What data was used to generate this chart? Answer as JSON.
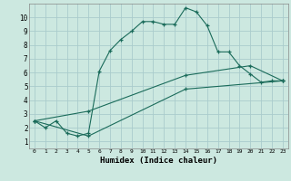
{
  "title": "",
  "xlabel": "Humidex (Indice chaleur)",
  "bg_color": "#cce8e0",
  "grid_color": "#aacccc",
  "line_color": "#1a6b5a",
  "xlim": [
    -0.5,
    23.5
  ],
  "ylim": [
    0.5,
    11.0
  ],
  "xticks": [
    0,
    1,
    2,
    3,
    4,
    5,
    6,
    7,
    8,
    9,
    10,
    11,
    12,
    13,
    14,
    15,
    16,
    17,
    18,
    19,
    20,
    21,
    22,
    23
  ],
  "yticks": [
    1,
    2,
    3,
    4,
    5,
    6,
    7,
    8,
    9,
    10
  ],
  "series1_x": [
    0,
    1,
    2,
    3,
    4,
    5,
    6,
    7,
    8,
    9,
    10,
    11,
    12,
    13,
    14,
    15,
    16,
    17,
    18,
    19,
    20,
    21,
    22,
    23
  ],
  "series1_y": [
    2.5,
    2.0,
    2.5,
    1.6,
    1.4,
    1.6,
    6.1,
    7.6,
    8.4,
    9.0,
    9.7,
    9.7,
    9.5,
    9.5,
    10.7,
    10.4,
    9.4,
    7.5,
    7.5,
    6.5,
    5.9,
    5.3,
    5.4,
    5.4
  ],
  "series2_x": [
    0,
    5,
    14,
    23
  ],
  "series2_y": [
    2.5,
    1.4,
    4.8,
    5.4
  ],
  "series3_x": [
    0,
    5,
    14,
    20,
    23
  ],
  "series3_y": [
    2.5,
    3.2,
    5.8,
    6.5,
    5.4
  ]
}
